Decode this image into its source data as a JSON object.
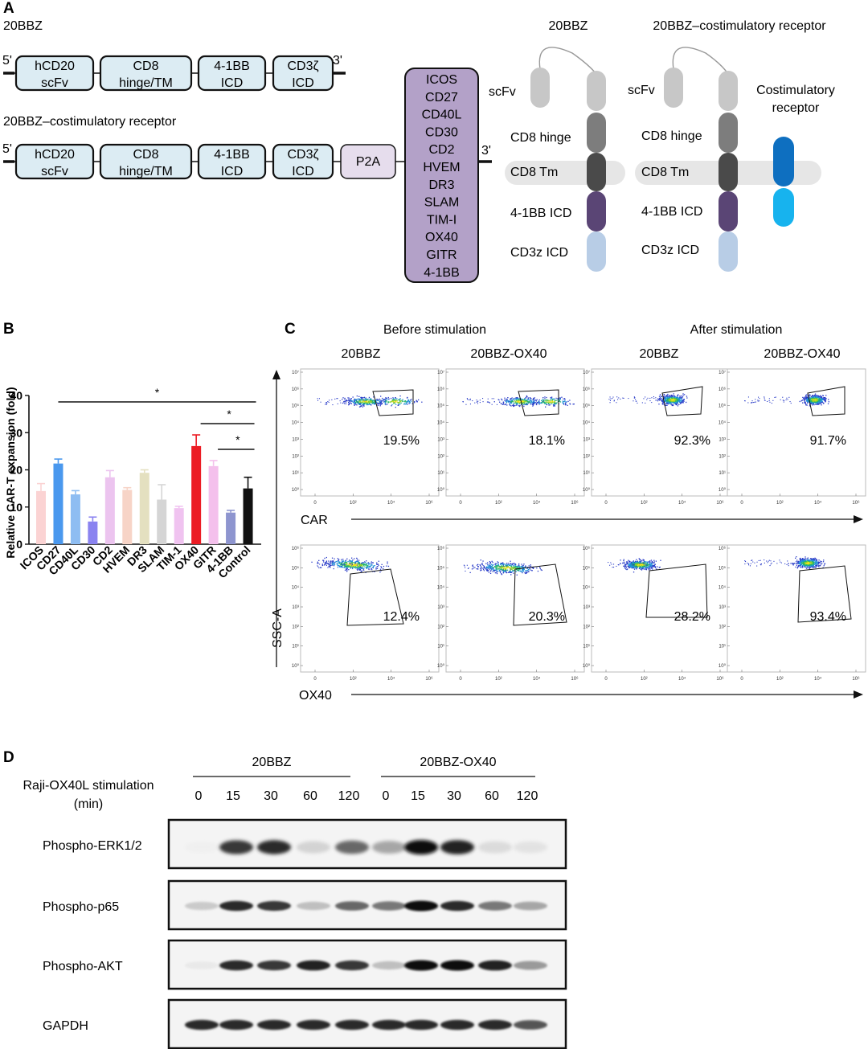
{
  "panel_a": {
    "letter": "A",
    "construct1": {
      "title": "20BBZ",
      "end5": "5'",
      "end3": "3'",
      "boxes": [
        [
          "hCD20",
          "scFv"
        ],
        [
          "CD8",
          "hinge/TM"
        ],
        [
          "4-1BB",
          "ICD"
        ],
        [
          "CD3ζ",
          "ICD"
        ]
      ]
    },
    "construct2": {
      "title": "20BBZ–costimulatory receptor",
      "end5": "5'",
      "end3": "3'",
      "boxes": [
        [
          "hCD20",
          "scFv"
        ],
        [
          "CD8",
          "hinge/TM"
        ],
        [
          "4-1BB",
          "ICD"
        ],
        [
          "CD3ζ",
          "ICD"
        ]
      ],
      "p2a": "P2A"
    },
    "costim_list": [
      "ICOS",
      "CD27",
      "CD40L",
      "CD30",
      "CD2",
      "HVEM",
      "DR3",
      "SLAM",
      "TIM-I",
      "OX40",
      "GITR",
      "4-1BB"
    ],
    "schematic1": {
      "title": "20BBZ",
      "labels": [
        "scFv",
        "CD8 hinge",
        "CD8 Tm",
        "4-1BB ICD",
        "CD3z ICD"
      ]
    },
    "schematic2": {
      "title": "20BBZ–costimulatory receptor",
      "labels": [
        "scFv",
        "CD8 hinge",
        "CD8 Tm",
        "4-1BB ICD",
        "CD3z ICD"
      ],
      "costim_label": [
        "Costimulatory",
        "receptor"
      ]
    },
    "colors": {
      "scfv": "#c7c7c7",
      "hinge": "#7d7d7d",
      "tm": "#4a4a4a",
      "bb": "#5a4575",
      "cd3z": "#b8cde6",
      "costim_top": "#0e6fc0",
      "costim_bottom": "#17b3ee",
      "membrane": "#e6e6e6",
      "list_fill": "#b3a1c8"
    }
  },
  "panel_b": {
    "letter": "B",
    "chart_data": {
      "type": "bar",
      "categories": [
        "ICOS",
        "CD27",
        "CD40L",
        "CD30",
        "CD2",
        "HVEM",
        "DR3",
        "SLAM",
        "TIM-1",
        "OX40",
        "GITR",
        "4-1BB",
        "Control"
      ],
      "values": [
        14.3,
        21.7,
        13.4,
        6.1,
        18.0,
        14.6,
        19.2,
        12.0,
        9.7,
        26.4,
        21.0,
        8.5,
        15.0
      ],
      "errors": [
        2.0,
        1.2,
        1.0,
        1.2,
        1.8,
        0.6,
        0.8,
        4.0,
        0.5,
        3.0,
        1.5,
        0.6,
        3.0
      ],
      "colors": [
        "#fbd3d3",
        "#4a98ee",
        "#8ebdf2",
        "#8a83f0",
        "#ecc4ef",
        "#f7d4c7",
        "#e4e0c0",
        "#d5d5d5",
        "#f0c3f0",
        "#ec1c24",
        "#f4c0ec",
        "#8e95cf",
        "#111111"
      ],
      "ylabel": "Relative CAR-T expansion (fold)",
      "ylim": [
        0,
        40
      ],
      "yticks": [
        0,
        10,
        20,
        30,
        40
      ],
      "significance": [
        {
          "from": 1,
          "to": 12,
          "label": "*"
        },
        {
          "from": 10,
          "to": 12,
          "label": "*"
        },
        {
          "from": 11,
          "to": 12,
          "label": "*"
        }
      ]
    }
  },
  "panel_c": {
    "letter": "C",
    "group_titles": [
      "Before stimulation",
      "After stimulation"
    ],
    "column_titles": [
      "20BBZ",
      "20BBZ-OX40",
      "20BBZ",
      "20BBZ-OX40"
    ],
    "row1_percent": [
      "19.5%",
      "18.1%",
      "92.3%",
      "91.7%"
    ],
    "row2_percent": [
      "12.4%",
      "20.3%",
      "28.2%",
      "93.4%"
    ],
    "row1_xlabel": "CAR",
    "row2_xlabel": "OX40",
    "ylabel": "SSC-A",
    "x_ticks": [
      "0",
      "10²",
      "10⁴",
      "10⁶"
    ],
    "y_ticks": [
      "10⁷",
      "10⁶",
      "10⁵",
      "10⁴",
      "10³",
      "10²",
      "10¹",
      "10⁰"
    ]
  },
  "panel_d": {
    "letter": "D",
    "group_labels": [
      "20BBZ",
      "20BBZ-OX40"
    ],
    "stim_label": [
      "Raji-OX40L stimulation",
      "(min)"
    ],
    "timepoints": [
      "0",
      "15",
      "30",
      "60",
      "120",
      "0",
      "15",
      "30",
      "60",
      "120"
    ],
    "blots": [
      {
        "name": "Phospho-ERK1/2",
        "intensity": [
          0.03,
          0.8,
          0.85,
          0.25,
          0.65,
          0.45,
          1.0,
          0.9,
          0.2,
          0.15
        ]
      },
      {
        "name": "Phospho-p65",
        "intensity": [
          0.3,
          0.85,
          0.8,
          0.35,
          0.65,
          0.6,
          1.0,
          0.85,
          0.6,
          0.45
        ]
      },
      {
        "name": "Phospho-AKT",
        "intensity": [
          0.1,
          0.85,
          0.8,
          0.9,
          0.8,
          0.35,
          1.0,
          1.0,
          0.9,
          0.5
        ]
      },
      {
        "name": "GAPDH",
        "intensity": [
          0.85,
          0.85,
          0.85,
          0.85,
          0.85,
          0.85,
          0.85,
          0.85,
          0.85,
          0.7
        ]
      }
    ]
  }
}
